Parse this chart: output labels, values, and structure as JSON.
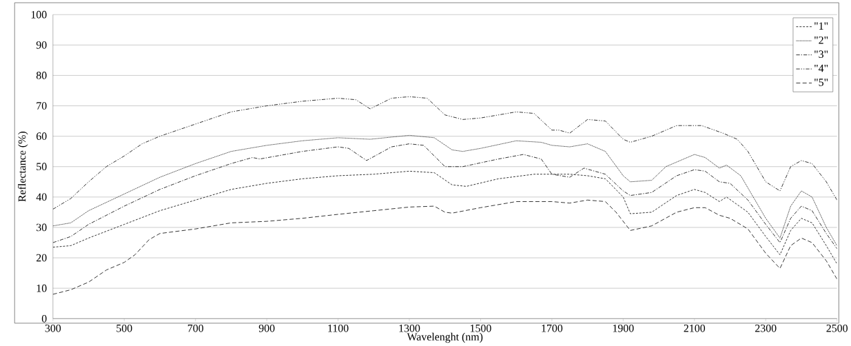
{
  "chart_data": {
    "type": "line",
    "xlabel": "Wavelenght (nm)",
    "ylabel": "Reflectance (%)",
    "xlim": [
      300,
      2500
    ],
    "xticks": [
      300,
      500,
      700,
      900,
      1100,
      1300,
      1500,
      1700,
      1900,
      2100,
      2300,
      2500
    ],
    "ylim": [
      0,
      100
    ],
    "yticks": [
      0,
      10,
      20,
      30,
      40,
      50,
      60,
      70,
      80,
      90,
      100
    ],
    "grid": "y",
    "legend": "top right",
    "series": [
      {
        "name": "\"1\"",
        "color": "#333333",
        "line_style": "dashed",
        "x": [
          300,
          350,
          400,
          500,
          600,
          700,
          800,
          900,
          1000,
          1100,
          1200,
          1300,
          1370,
          1420,
          1460,
          1550,
          1650,
          1750,
          1800,
          1850,
          1900,
          1920,
          1980,
          2050,
          2100,
          2130,
          2170,
          2190,
          2250,
          2300,
          2340,
          2370,
          2400,
          2430,
          2470,
          2500
        ],
        "values": [
          23.5,
          24,
          26.5,
          31,
          35.5,
          39,
          42.5,
          44.5,
          46,
          47,
          47.5,
          48.5,
          48,
          44,
          43.5,
          46,
          47.5,
          47.5,
          47,
          46,
          40,
          34.5,
          35,
          40.5,
          42.5,
          41.5,
          38.5,
          40,
          35,
          27,
          21,
          29,
          33,
          31.5,
          24,
          18
        ]
      },
      {
        "name": "\"2\"",
        "color": "#333333",
        "line_style": "dotted",
        "x": [
          300,
          350,
          400,
          500,
          600,
          700,
          800,
          900,
          1000,
          1100,
          1190,
          1300,
          1370,
          1420,
          1450,
          1500,
          1600,
          1670,
          1700,
          1750,
          1800,
          1850,
          1900,
          1920,
          1980,
          2020,
          2100,
          2130,
          2170,
          2190,
          2230,
          2300,
          2340,
          2370,
          2400,
          2430,
          2470,
          2500
        ],
        "values": [
          30.5,
          31.5,
          35.5,
          41,
          46.5,
          51,
          55,
          57,
          58.5,
          59.5,
          59,
          60.3,
          59.5,
          55.5,
          55,
          56,
          58.5,
          58,
          57,
          56.5,
          57.5,
          55,
          47,
          45,
          45.5,
          50,
          54,
          53,
          49.5,
          50.5,
          47,
          33,
          26.5,
          37,
          42,
          40,
          30,
          24
        ]
      },
      {
        "name": "\"3\"",
        "color": "#333333",
        "line_style": "dashdot",
        "x": [
          300,
          350,
          400,
          500,
          600,
          700,
          800,
          860,
          880,
          1000,
          1100,
          1130,
          1180,
          1250,
          1300,
          1340,
          1400,
          1450,
          1550,
          1620,
          1670,
          1700,
          1750,
          1790,
          1850,
          1900,
          1920,
          1980,
          2050,
          2100,
          2130,
          2170,
          2200,
          2250,
          2300,
          2340,
          2370,
          2400,
          2430,
          2470,
          2500
        ],
        "values": [
          25,
          27,
          31,
          37,
          42.5,
          47,
          51,
          53,
          52.5,
          55,
          56.5,
          56,
          52,
          56.5,
          57.5,
          57,
          50,
          50,
          52.5,
          54,
          52.5,
          47.5,
          46.5,
          49.5,
          47.5,
          42,
          40.5,
          41.5,
          47,
          49,
          48.5,
          45,
          44.5,
          39,
          31,
          25,
          33,
          37,
          35.5,
          28,
          23
        ]
      },
      {
        "name": "\"4\"",
        "color": "#333333",
        "line_style": "dashdotdot",
        "x": [
          300,
          350,
          400,
          450,
          500,
          550,
          600,
          700,
          800,
          900,
          1000,
          1100,
          1150,
          1190,
          1250,
          1300,
          1350,
          1400,
          1450,
          1500,
          1600,
          1650,
          1700,
          1720,
          1750,
          1800,
          1850,
          1900,
          1920,
          1980,
          2050,
          2120,
          2180,
          2220,
          2250,
          2300,
          2340,
          2370,
          2400,
          2430,
          2470,
          2500
        ],
        "values": [
          36,
          39.5,
          45,
          50,
          53.5,
          57.5,
          60,
          64,
          68,
          70,
          71.5,
          72.5,
          72,
          69,
          72.5,
          73,
          72.5,
          67,
          65.5,
          66,
          68,
          67.5,
          62,
          62,
          61,
          65.5,
          65,
          59,
          58,
          60,
          63.5,
          63.5,
          61,
          59,
          55,
          45,
          42,
          50,
          52,
          51,
          45,
          39
        ]
      },
      {
        "name": "\"5\"",
        "color": "#333333",
        "line_style": "loosely dashed",
        "x": [
          300,
          350,
          400,
          450,
          500,
          530,
          570,
          600,
          700,
          800,
          900,
          1000,
          1100,
          1200,
          1300,
          1370,
          1400,
          1420,
          1500,
          1600,
          1700,
          1750,
          1800,
          1850,
          1880,
          1920,
          1980,
          2050,
          2100,
          2130,
          2170,
          2200,
          2250,
          2300,
          2340,
          2370,
          2400,
          2430,
          2470,
          2500
        ],
        "values": [
          8,
          9.5,
          12,
          16,
          18.5,
          21,
          26,
          28,
          29.5,
          31.5,
          32,
          33,
          34.3,
          35.5,
          36.7,
          37,
          35,
          34.7,
          36.5,
          38.5,
          38.5,
          38,
          39,
          38.5,
          35,
          29,
          30.5,
          35,
          36.5,
          36.5,
          34,
          33,
          29.5,
          21.5,
          16.5,
          24,
          26.5,
          25,
          19,
          13
        ]
      }
    ]
  }
}
